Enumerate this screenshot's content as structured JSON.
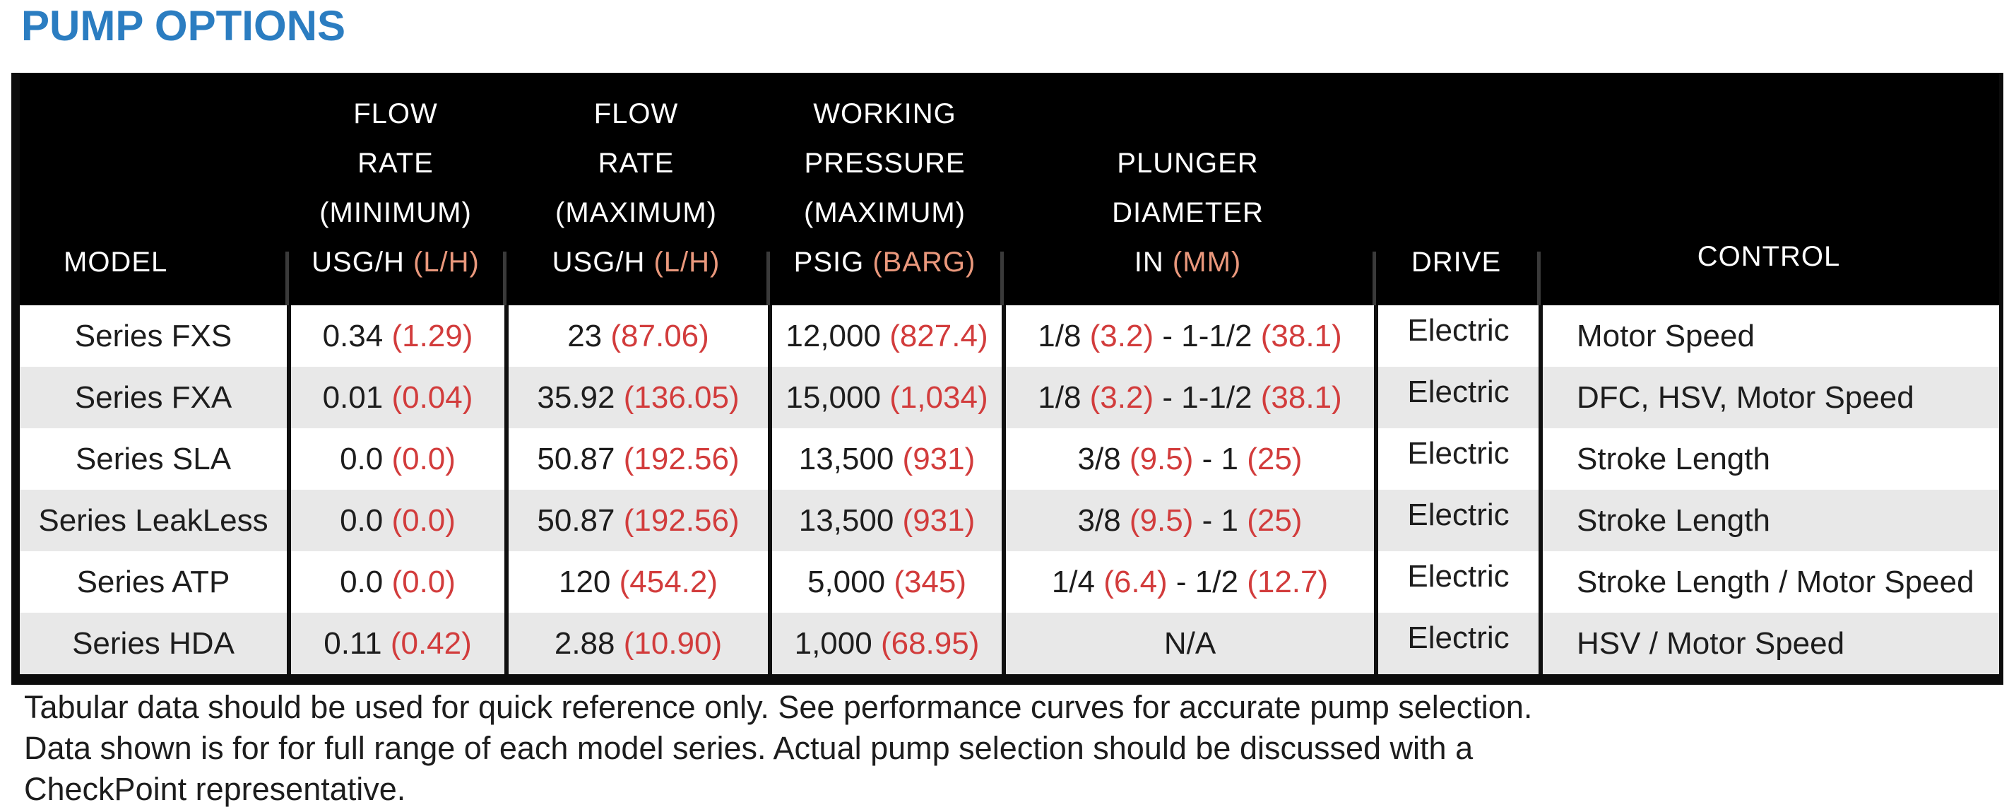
{
  "page": {
    "title": "PUMP OPTIONS"
  },
  "colors": {
    "accent_blue": "#2b7dc1",
    "value_red": "#d23c3c",
    "header_paren_salmon": "#ea987c",
    "row_stripe_gray": "#e8e8e8",
    "header_bg_black": "#000000"
  },
  "table": {
    "columns": [
      {
        "id": "model",
        "header_lines": [],
        "unit_main": "MODEL",
        "unit_paren": ""
      },
      {
        "id": "flow-min",
        "header_lines": [
          "FLOW",
          "RATE",
          "(MINIMUM)"
        ],
        "unit_main": "USG/H ",
        "unit_paren": "(L/H)"
      },
      {
        "id": "flow-max",
        "header_lines": [
          "FLOW",
          "RATE",
          "(MAXIMUM)"
        ],
        "unit_main": "USG/H ",
        "unit_paren": "(L/H)"
      },
      {
        "id": "pressure",
        "header_lines": [
          "WORKING",
          "PRESSURE",
          "(MAXIMUM)"
        ],
        "unit_main": "PSIG ",
        "unit_paren": "(BARG)"
      },
      {
        "id": "plunger",
        "header_lines": [
          "PLUNGER",
          "DIAMETER"
        ],
        "unit_main": "IN ",
        "unit_paren": "(MM)"
      },
      {
        "id": "drive",
        "header_lines": [],
        "unit_main": "DRIVE",
        "unit_paren": ""
      },
      {
        "id": "control",
        "header_lines": [],
        "unit_main": "CONTROL",
        "unit_paren": ""
      }
    ],
    "rows": [
      {
        "model": "Series FXS",
        "flow_min": [
          {
            "t": "0.34 "
          },
          {
            "t": "(1.29)",
            "red": true
          }
        ],
        "flow_max": [
          {
            "t": "23 "
          },
          {
            "t": "(87.06)",
            "red": true
          }
        ],
        "pressure": [
          {
            "t": "12,000 "
          },
          {
            "t": "(827.4)",
            "red": true
          }
        ],
        "plunger": [
          {
            "t": "1/8 "
          },
          {
            "t": "(3.2)",
            "red": true
          },
          {
            "t": " - 1-1/2 "
          },
          {
            "t": "(38.1)",
            "red": true
          }
        ],
        "drive": "Electric",
        "control": "Motor Speed"
      },
      {
        "model": "Series FXA",
        "flow_min": [
          {
            "t": "0.01 "
          },
          {
            "t": "(0.04)",
            "red": true
          }
        ],
        "flow_max": [
          {
            "t": "35.92 "
          },
          {
            "t": "(136.05)",
            "red": true
          }
        ],
        "pressure": [
          {
            "t": "15,000 "
          },
          {
            "t": "(1,034)",
            "red": true
          }
        ],
        "plunger": [
          {
            "t": "1/8 "
          },
          {
            "t": "(3.2)",
            "red": true
          },
          {
            "t": " - 1-1/2 "
          },
          {
            "t": "(38.1)",
            "red": true
          }
        ],
        "drive": "Electric",
        "control": "DFC, HSV, Motor Speed"
      },
      {
        "model": "Series SLA",
        "flow_min": [
          {
            "t": "0.0 "
          },
          {
            "t": "(0.0)",
            "red": true
          }
        ],
        "flow_max": [
          {
            "t": "50.87 "
          },
          {
            "t": "(192.56)",
            "red": true
          }
        ],
        "pressure": [
          {
            "t": "13,500 "
          },
          {
            "t": "(931)",
            "red": true
          }
        ],
        "plunger": [
          {
            "t": "3/8 "
          },
          {
            "t": "(9.5)",
            "red": true
          },
          {
            "t": " - 1 "
          },
          {
            "t": "(25)",
            "red": true
          }
        ],
        "drive": "Electric",
        "control": "Stroke Length"
      },
      {
        "model": "Series LeakLess",
        "flow_min": [
          {
            "t": "0.0 "
          },
          {
            "t": "(0.0)",
            "red": true
          }
        ],
        "flow_max": [
          {
            "t": "50.87 "
          },
          {
            "t": "(192.56)",
            "red": true
          }
        ],
        "pressure": [
          {
            "t": "13,500 "
          },
          {
            "t": "(931)",
            "red": true
          }
        ],
        "plunger": [
          {
            "t": "3/8 "
          },
          {
            "t": "(9.5)",
            "red": true
          },
          {
            "t": " - 1 "
          },
          {
            "t": "(25)",
            "red": true
          }
        ],
        "drive": "Electric",
        "control": "Stroke Length"
      },
      {
        "model": "Series ATP",
        "flow_min": [
          {
            "t": "0.0 "
          },
          {
            "t": "(0.0)",
            "red": true
          }
        ],
        "flow_max": [
          {
            "t": "120 "
          },
          {
            "t": "(454.2)",
            "red": true
          }
        ],
        "pressure": [
          {
            "t": "5,000 "
          },
          {
            "t": "(345)",
            "red": true
          }
        ],
        "plunger": [
          {
            "t": "1/4 "
          },
          {
            "t": "(6.4)",
            "red": true
          },
          {
            "t": " - 1/2 "
          },
          {
            "t": "(12.7)",
            "red": true
          }
        ],
        "drive": "Electric",
        "control": "Stroke Length / Motor Speed"
      },
      {
        "model": "Series HDA",
        "flow_min": [
          {
            "t": "0.11 "
          },
          {
            "t": "(0.42)",
            "red": true
          }
        ],
        "flow_max": [
          {
            "t": "2.88 "
          },
          {
            "t": "(10.90)",
            "red": true
          }
        ],
        "pressure": [
          {
            "t": "1,000 "
          },
          {
            "t": "(68.95)",
            "red": true
          }
        ],
        "plunger": [
          {
            "t": "N/A"
          }
        ],
        "drive": "Electric",
        "control": "HSV / Motor Speed"
      }
    ]
  },
  "notes": {
    "lines": [
      "Tabular data should be used for quick reference only. See performance curves for accurate pump selection.",
      "Data shown is for for full range of each model series. Actual pump selection should be discussed with a",
      "CheckPoint representative."
    ]
  }
}
